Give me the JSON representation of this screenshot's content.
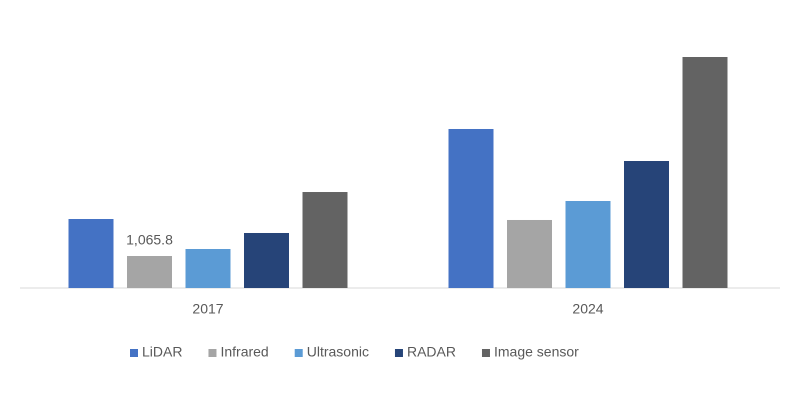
{
  "chart_data": {
    "type": "bar",
    "categories": [
      "2017",
      "2024"
    ],
    "series": [
      {
        "name": "LiDAR",
        "color": "#4472c4",
        "values": [
          2298,
          5296
        ]
      },
      {
        "name": "Infrared",
        "color": "#a5a5a5",
        "values": [
          1065.8,
          2265
        ],
        "value_labels": [
          "1,065.8",
          null
        ]
      },
      {
        "name": "Ultrasonic",
        "color": "#5b9bd5",
        "values": [
          1299,
          2898
        ]
      },
      {
        "name": "RADAR",
        "color": "#264478",
        "values": [
          1832,
          4230
        ]
      },
      {
        "name": "Image sensor",
        "color": "#636363",
        "values": [
          3197,
          7694
        ]
      }
    ],
    "legend": "bottom"
  }
}
